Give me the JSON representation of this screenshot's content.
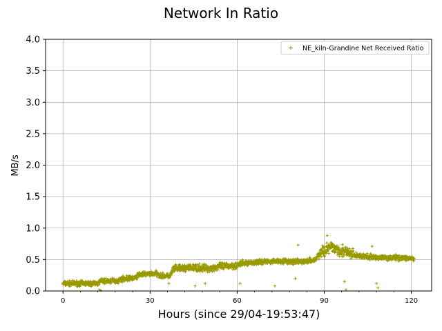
{
  "chart_data": {
    "type": "scatter",
    "title": "Network In Ratio",
    "xlabel": "Hours (since 29/04-19:53:47)",
    "ylabel": "MB/s",
    "xlim": [
      -6,
      127
    ],
    "ylim": [
      0,
      4.0
    ],
    "x_ticks": [
      0,
      30,
      60,
      90,
      120
    ],
    "x_tick_labels": [
      "0",
      "30",
      "60",
      "90",
      "120"
    ],
    "y_ticks": [
      0.0,
      0.5,
      1.0,
      1.5,
      2.0,
      2.5,
      3.0,
      3.5,
      4.0
    ],
    "y_tick_labels": [
      "0.0",
      "0.5",
      "1.0",
      "1.5",
      "2.0",
      "2.5",
      "3.0",
      "3.5",
      "4.0"
    ],
    "grid": true,
    "legend_position": "top-right",
    "marker": "+",
    "color": "#999900",
    "series": [
      {
        "name": "NE_kiln-Grandine Net Received Ratio",
        "trend": [
          {
            "x": 0,
            "y": 0.12
          },
          {
            "x": 12,
            "y": 0.12
          },
          {
            "x": 13,
            "y": 0.16
          },
          {
            "x": 19,
            "y": 0.16
          },
          {
            "x": 20,
            "y": 0.19
          },
          {
            "x": 25,
            "y": 0.21
          },
          {
            "x": 26,
            "y": 0.26
          },
          {
            "x": 32,
            "y": 0.28
          },
          {
            "x": 34,
            "y": 0.24
          },
          {
            "x": 37,
            "y": 0.24
          },
          {
            "x": 38,
            "y": 0.35
          },
          {
            "x": 45,
            "y": 0.37
          },
          {
            "x": 50,
            "y": 0.36
          },
          {
            "x": 55,
            "y": 0.39
          },
          {
            "x": 60,
            "y": 0.41
          },
          {
            "x": 62,
            "y": 0.44
          },
          {
            "x": 70,
            "y": 0.47
          },
          {
            "x": 75,
            "y": 0.48
          },
          {
            "x": 80,
            "y": 0.46
          },
          {
            "x": 85,
            "y": 0.48
          },
          {
            "x": 87,
            "y": 0.5
          },
          {
            "x": 88,
            "y": 0.58
          },
          {
            "x": 90,
            "y": 0.65
          },
          {
            "x": 93,
            "y": 0.7
          },
          {
            "x": 96,
            "y": 0.64
          },
          {
            "x": 100,
            "y": 0.57
          },
          {
            "x": 105,
            "y": 0.54
          },
          {
            "x": 110,
            "y": 0.53
          },
          {
            "x": 115,
            "y": 0.53
          },
          {
            "x": 120,
            "y": 0.52
          },
          {
            "x": 121,
            "y": 0.5
          }
        ],
        "outliers": [
          {
            "x": 12.5,
            "y": 0.02
          },
          {
            "x": 13,
            "y": 0.01
          },
          {
            "x": 36.5,
            "y": 0.12
          },
          {
            "x": 45.5,
            "y": 0.08
          },
          {
            "x": 49,
            "y": 0.12
          },
          {
            "x": 61,
            "y": 0.12
          },
          {
            "x": 73,
            "y": 0.08
          },
          {
            "x": 80,
            "y": 0.2
          },
          {
            "x": 81,
            "y": 0.73
          },
          {
            "x": 91,
            "y": 0.88
          },
          {
            "x": 97,
            "y": 0.15
          },
          {
            "x": 97.5,
            "y": 0.02
          },
          {
            "x": 106.5,
            "y": 0.71
          },
          {
            "x": 108,
            "y": 0.12
          },
          {
            "x": 108.5,
            "y": 0.05
          }
        ]
      }
    ]
  }
}
